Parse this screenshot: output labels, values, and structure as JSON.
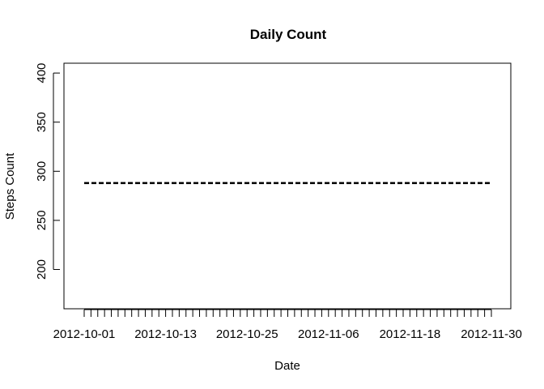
{
  "chart_data": {
    "type": "line",
    "title": "Daily Count",
    "xlabel": "Date",
    "ylabel": "Steps Count",
    "x_start": "2012-10-01",
    "x_end": "2012-11-30",
    "x_tick_labels": [
      "2012-10-01",
      "2012-10-13",
      "2012-10-25",
      "2012-11-06",
      "2012-11-18",
      "2012-11-30"
    ],
    "y_ticks": [
      200,
      250,
      300,
      350,
      400
    ],
    "ylim": [
      160,
      410
    ],
    "series": [
      {
        "line_style": "dashed",
        "color": "#000000",
        "x": [
          "2012-10-01",
          "2012-11-30"
        ],
        "values": [
          288,
          288
        ]
      }
    ],
    "grid": false,
    "legend": "none"
  }
}
